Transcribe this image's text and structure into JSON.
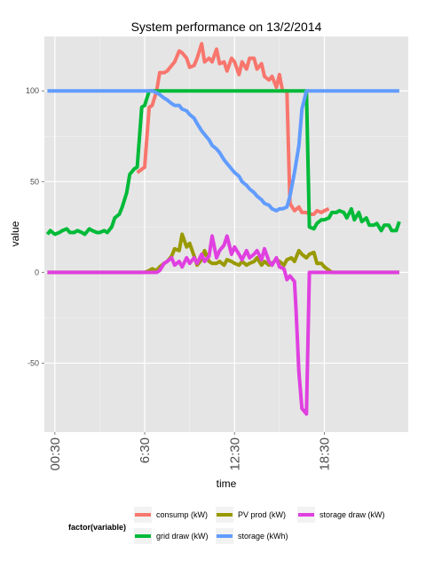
{
  "chart_data": {
    "type": "line",
    "title": "System performance on 13/2/2014",
    "xlabel": "time",
    "ylabel": "value",
    "x_unit": "hour of day",
    "xlim": [
      0,
      24
    ],
    "ylim": [
      -88,
      130
    ],
    "x_ticks": [
      {
        "value": 0.5,
        "label": "00:30"
      },
      {
        "value": 6.5,
        "label": "6:30"
      },
      {
        "value": 12.5,
        "label": "12:30"
      },
      {
        "value": 18.5,
        "label": "18:30"
      }
    ],
    "y_ticks": [
      {
        "value": -50,
        "label": "-50"
      },
      {
        "value": 0,
        "label": "0"
      },
      {
        "value": 50,
        "label": "50"
      },
      {
        "value": 100,
        "label": "100"
      }
    ],
    "grid": true,
    "background": "#e5e5e5",
    "legend": {
      "title": "factor(variable)",
      "placement": "bottom"
    },
    "series": [
      {
        "name": "consump (kW)",
        "color": "#f8766d",
        "x": [
          6.0,
          6.5,
          6.8,
          7.0,
          7.3,
          7.5,
          7.8,
          8.0,
          8.3,
          8.5,
          8.8,
          9.0,
          9.3,
          9.5,
          9.8,
          10.0,
          10.3,
          10.5,
          10.8,
          11.0,
          11.3,
          11.5,
          11.8,
          12.0,
          12.3,
          12.5,
          12.8,
          13.0,
          13.3,
          13.5,
          13.8,
          14.0,
          14.3,
          14.5,
          14.8,
          15.0,
          15.3,
          15.5,
          15.7,
          16.0,
          16.2,
          16.5,
          16.8,
          17.0,
          17.3,
          17.5,
          17.8,
          18.0,
          18.3,
          18.5,
          18.8
        ],
        "y": [
          55,
          58,
          91,
          92,
          100,
          110,
          110,
          111,
          114,
          116,
          122,
          121,
          118,
          113,
          114,
          118,
          126,
          116,
          118,
          116,
          123,
          115,
          116,
          111,
          118,
          116,
          109,
          116,
          112,
          118,
          118,
          112,
          115,
          108,
          106,
          108,
          102,
          109,
          100,
          100,
          38,
          34,
          36,
          33,
          33,
          32,
          32,
          34,
          33,
          34,
          35
        ]
      },
      {
        "name": "grid draw (kW)",
        "color": "#00ba38",
        "x": [
          0.0,
          0.2,
          0.5,
          0.8,
          1.0,
          1.3,
          1.5,
          1.8,
          2.0,
          2.3,
          2.5,
          2.8,
          3.0,
          3.3,
          3.5,
          3.8,
          4.0,
          4.3,
          4.5,
          4.8,
          5.0,
          5.3,
          5.5,
          5.8,
          6.0,
          6.3,
          6.5,
          6.8,
          7.0,
          7.3,
          7.5,
          7.8,
          8.0,
          16.5,
          16.8,
          17.0,
          17.3,
          17.5,
          17.8,
          18.0,
          18.3,
          18.5,
          18.8,
          19.0,
          19.3,
          19.5,
          19.8,
          20.0,
          20.3,
          20.5,
          20.8,
          21.0,
          21.3,
          21.5,
          21.8,
          22.0,
          22.3,
          22.5,
          22.8,
          23.0,
          23.3,
          23.5
        ],
        "y": [
          21,
          23,
          21,
          22,
          23,
          24,
          22,
          22,
          23,
          22,
          21,
          24,
          23,
          22,
          22,
          23,
          22,
          25,
          30,
          32,
          36,
          44,
          54,
          57,
          58,
          91,
          92,
          100,
          100,
          100,
          100,
          100,
          100,
          100,
          100,
          100,
          100,
          25,
          24,
          27,
          29,
          29,
          30,
          33,
          33,
          34,
          33,
          30,
          35,
          29,
          33,
          28,
          30,
          26,
          26,
          27,
          23,
          26,
          26,
          23,
          23,
          28
        ]
      },
      {
        "name": "PV prod (kW)",
        "color": "#999900",
        "x": [
          0.0,
          1.0,
          2.0,
          3.0,
          4.0,
          5.0,
          6.0,
          6.3,
          6.5,
          6.8,
          7.0,
          7.3,
          7.5,
          7.8,
          8.0,
          8.3,
          8.5,
          8.8,
          9.0,
          9.3,
          9.5,
          9.8,
          10.0,
          10.3,
          10.5,
          10.8,
          11.0,
          11.3,
          11.5,
          11.8,
          12.0,
          12.3,
          12.5,
          12.8,
          13.0,
          13.3,
          13.5,
          13.8,
          14.0,
          14.3,
          14.5,
          14.8,
          15.0,
          15.3,
          15.5,
          15.8,
          16.0,
          16.3,
          16.5,
          16.8,
          17.0,
          17.3,
          17.5,
          17.8,
          18.0,
          18.3,
          18.5,
          19.0,
          20.0,
          21.0,
          22.0,
          23.0,
          23.5
        ],
        "y": [
          0,
          0,
          0,
          0,
          0,
          0,
          0,
          0,
          0,
          1,
          2,
          1,
          3,
          5,
          6,
          9,
          13,
          12,
          21,
          14,
          16,
          9,
          4,
          7,
          12,
          6,
          5,
          5,
          6,
          4,
          7,
          6,
          5,
          4,
          6,
          4,
          5,
          6,
          8,
          4,
          6,
          4,
          5,
          7,
          6,
          4,
          7,
          8,
          6,
          12,
          10,
          8,
          10,
          11,
          5,
          5,
          3,
          0,
          0,
          0,
          0,
          0,
          0
        ]
      },
      {
        "name": "storage (kWh)",
        "color": "#619cff",
        "x": [
          0.0,
          7.0,
          7.3,
          7.5,
          7.8,
          8.0,
          8.3,
          8.5,
          8.8,
          9.0,
          9.3,
          9.5,
          9.8,
          10.0,
          10.3,
          10.5,
          10.8,
          11.0,
          11.3,
          11.5,
          11.8,
          12.0,
          12.3,
          12.5,
          12.8,
          13.0,
          13.3,
          13.5,
          13.8,
          14.0,
          14.3,
          14.5,
          14.8,
          15.0,
          15.3,
          15.5,
          15.7,
          16.0,
          16.2,
          16.5,
          16.8,
          17.0,
          17.3,
          17.5,
          18.0,
          19.0,
          20.0,
          21.0,
          22.0,
          23.0,
          23.5
        ],
        "y": [
          100,
          100,
          99,
          98,
          96,
          95,
          93,
          92,
          92,
          90,
          89,
          87,
          85,
          82,
          78,
          76,
          73,
          70,
          68,
          66,
          62,
          60,
          57,
          55,
          53,
          50,
          48,
          46,
          44,
          42,
          40,
          38,
          37,
          35,
          34,
          35,
          35,
          36,
          42,
          55,
          70,
          90,
          100,
          100,
          100,
          100,
          100,
          100,
          100,
          100,
          100
        ]
      },
      {
        "name": "storage draw (kW)",
        "color": "#e040e0",
        "x": [
          0.0,
          1.0,
          2.0,
          3.0,
          4.0,
          5.0,
          6.0,
          6.5,
          6.8,
          7.0,
          7.3,
          7.5,
          7.8,
          8.0,
          8.3,
          8.5,
          8.8,
          9.0,
          9.3,
          9.5,
          9.8,
          10.0,
          10.3,
          10.5,
          10.8,
          11.0,
          11.3,
          11.5,
          11.8,
          12.0,
          12.3,
          12.5,
          12.8,
          13.0,
          13.3,
          13.5,
          13.8,
          14.0,
          14.3,
          14.5,
          14.8,
          15.0,
          15.3,
          15.5,
          15.8,
          16.0,
          16.2,
          16.5,
          16.6,
          16.8,
          17.0,
          17.3,
          17.5,
          18.0,
          19.0,
          20.0,
          21.0,
          22.0,
          23.0,
          23.5
        ],
        "y": [
          0,
          0,
          0,
          0,
          0,
          0,
          0,
          0,
          0,
          0,
          0,
          1,
          5,
          6,
          8,
          4,
          6,
          3,
          8,
          5,
          8,
          5,
          10,
          6,
          9,
          20,
          8,
          12,
          15,
          20,
          10,
          14,
          10,
          7,
          12,
          8,
          10,
          12,
          7,
          13,
          6,
          4,
          8,
          3,
          2,
          -4,
          -2,
          -5,
          -20,
          -55,
          -75,
          -78,
          0,
          0,
          0,
          0,
          0,
          0,
          0,
          0
        ]
      }
    ]
  }
}
